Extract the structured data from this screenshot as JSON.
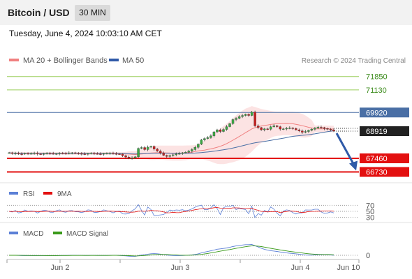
{
  "header": {
    "title": "Bitcoin / USD",
    "timeframe": "30 MIN"
  },
  "datetime": "Tuesday, June 4, 2024 10:03:10 AM CET",
  "legend": {
    "ma20_label": "MA 20 + Bollinger Bands",
    "ma50_label": "MA 50"
  },
  "credit": "Research © 2024 Trading Central",
  "colors": {
    "ma20": "#f08080",
    "ma50": "#4a6fa5",
    "resistance": "#9acd5a",
    "support": "#e31010",
    "arrow": "#2f5aa8",
    "rsi": "#5b7fd6",
    "signal": "#e31010",
    "macd_signal": "#3a9a1a"
  },
  "chart_data": [
    {
      "type": "candlestick",
      "title": "Bitcoin / USD",
      "timeframe": "30 MIN",
      "x_ticks": [
        "Jun 2",
        "Jun 3",
        "Jun 4",
        "Jun 10"
      ],
      "y_range": [
        66300,
        72400
      ],
      "current_price": 68919,
      "levels": [
        {
          "value": 71850,
          "kind": "resistance"
        },
        {
          "value": 71130,
          "kind": "resistance"
        },
        {
          "value": 69920,
          "kind": "pivot"
        },
        {
          "value": 67460,
          "kind": "support"
        },
        {
          "value": 66730,
          "kind": "support"
        }
      ],
      "series_close": [
        67760,
        67720,
        67740,
        67700,
        67690,
        67730,
        67710,
        67720,
        67740,
        67700,
        67690,
        67710,
        67730,
        67720,
        67700,
        67710,
        67740,
        67730,
        67720,
        67750,
        67760,
        67730,
        67720,
        67700,
        67690,
        67720,
        67740,
        67710,
        67700,
        67690,
        67720,
        67730,
        67740,
        67710,
        67700,
        67690,
        67600,
        67530,
        67470,
        67480,
        67540,
        67990,
        68040,
        67930,
        68060,
        68100,
        67960,
        67850,
        67740,
        67620,
        67560,
        67610,
        67650,
        67700,
        67720,
        67760,
        67790,
        67850,
        67930,
        68050,
        68220,
        68450,
        68520,
        68570,
        68670,
        68880,
        68990,
        68900,
        69010,
        69160,
        69320,
        69540,
        69610,
        69700,
        69760,
        69820,
        69760,
        69940,
        69200,
        69110,
        68990,
        69040,
        69020,
        69150,
        69210,
        69160,
        69030,
        69040,
        69070,
        69090,
        69060,
        68990,
        68930,
        68860,
        68900,
        68960,
        69020,
        69080,
        69130,
        69110,
        69060,
        69020,
        68990,
        68919
      ],
      "bollinger_width": 600
    },
    {
      "type": "line",
      "title": "RSI",
      "series": [
        {
          "name": "RSI"
        },
        {
          "name": "9MA"
        }
      ],
      "levels": [
        70,
        50,
        30
      ]
    },
    {
      "type": "line",
      "title": "MACD",
      "series": [
        {
          "name": "MACD"
        },
        {
          "name": "MACD Signal"
        }
      ],
      "levels": [
        0
      ]
    }
  ]
}
